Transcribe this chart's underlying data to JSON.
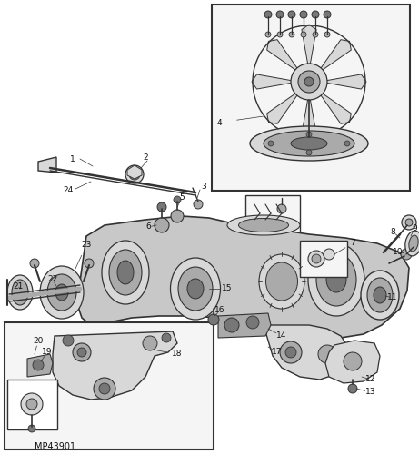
{
  "bg_color": "#ffffff",
  "line_color": "#333333",
  "part_label_color": "#111111",
  "diagram_label": "MP43901",
  "figsize": [
    4.61,
    5.0
  ],
  "dpi": 100,
  "gray_light": "#d8d8d8",
  "gray_mid": "#aaaaaa",
  "gray_dark": "#777777",
  "gray_body": "#c8c8c8",
  "inset_bg": "#f5f5f5",
  "white": "#ffffff"
}
